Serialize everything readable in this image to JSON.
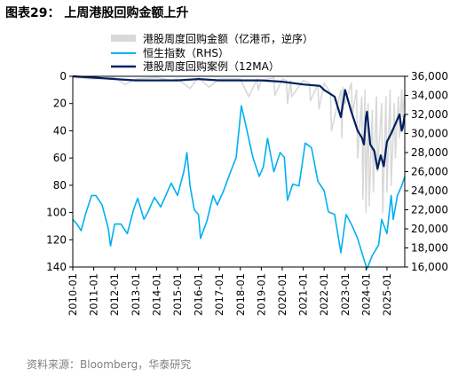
{
  "figure_title": "图表29：  上周港股回购金额上升",
  "source_note": "资料来源：Bloomberg，华泰研究",
  "chart_data": {
    "type": "line",
    "title": "",
    "xlabel": "",
    "ylabel": "",
    "x_ticks": [
      "2010-01",
      "2011-01",
      "2012-01",
      "2013-01",
      "2014-01",
      "2015-01",
      "2016-01",
      "2017-01",
      "2018-01",
      "2019-01",
      "2020-01",
      "2021-01",
      "2022-01",
      "2023-01",
      "2024-01",
      "2025-01"
    ],
    "xlim": [
      2010.0,
      2025.85
    ],
    "y_left": {
      "lim": [
        0,
        140
      ],
      "inverted": true,
      "ticks": [
        0,
        20,
        40,
        60,
        80,
        100,
        120,
        140
      ]
    },
    "y_right": {
      "lim": [
        16000,
        36000
      ],
      "ticks": [
        16000,
        18000,
        20000,
        22000,
        24000,
        26000,
        28000,
        30000,
        32000,
        34000,
        36000
      ]
    },
    "legend_position": "top",
    "grid": false,
    "series": [
      {
        "name": "港股周度回购金额（亿港币，逆序）",
        "axis": "left",
        "color": "#d9d9d9",
        "x": [
          2010.0,
          2011.0,
          2012.0,
          2012.5,
          2013.0,
          2014.0,
          2014.7,
          2015.0,
          2015.6,
          2016.0,
          2016.5,
          2017.0,
          2018.0,
          2018.4,
          2018.8,
          2018.85,
          2019.0,
          2019.6,
          2019.65,
          2020.0,
          2020.2,
          2020.25,
          2020.4,
          2020.45,
          2021.0,
          2021.3,
          2021.35,
          2021.7,
          2021.75,
          2022.0,
          2022.3,
          2022.35,
          2022.8,
          2022.85,
          2022.9,
          2023.0,
          2023.3,
          2023.35,
          2023.55,
          2023.6,
          2023.8,
          2023.85,
          2023.95,
          2024.0,
          2024.1,
          2024.15,
          2024.3,
          2024.35,
          2024.5,
          2024.55,
          2024.75,
          2024.8,
          2024.95,
          2025.0,
          2025.15,
          2025.2,
          2025.35,
          2025.4,
          2025.55,
          2025.6,
          2025.7,
          2025.75,
          2025.85
        ],
        "y": [
          1,
          2,
          1,
          6,
          2,
          1,
          3,
          2,
          9,
          1,
          8,
          2,
          2,
          15,
          2,
          10,
          3,
          1,
          14,
          2,
          3,
          20,
          3,
          15,
          3,
          5,
          18,
          6,
          24,
          5,
          12,
          40,
          10,
          45,
          8,
          20,
          5,
          28,
          10,
          60,
          15,
          90,
          10,
          100,
          20,
          95,
          25,
          85,
          15,
          70,
          20,
          100,
          15,
          85,
          10,
          80,
          20,
          60,
          15,
          45,
          10,
          30,
          10
        ]
      },
      {
        "name": "恒生指数（RHS）",
        "axis": "right",
        "color": "#00b0f0",
        "x": [
          2010.0,
          2010.2,
          2010.4,
          2010.6,
          2010.9,
          2011.1,
          2011.4,
          2011.7,
          2011.8,
          2012.0,
          2012.3,
          2012.6,
          2012.9,
          2013.1,
          2013.4,
          2013.6,
          2013.9,
          2014.2,
          2014.5,
          2014.7,
          2015.0,
          2015.3,
          2015.45,
          2015.6,
          2015.8,
          2016.0,
          2016.1,
          2016.4,
          2016.7,
          2016.9,
          2017.2,
          2017.5,
          2017.8,
          2018.05,
          2018.3,
          2018.6,
          2018.9,
          2019.1,
          2019.3,
          2019.6,
          2019.9,
          2020.1,
          2020.25,
          2020.5,
          2020.8,
          2021.1,
          2021.4,
          2021.7,
          2022.0,
          2022.2,
          2022.5,
          2022.8,
          2023.05,
          2023.3,
          2023.6,
          2023.9,
          2024.05,
          2024.3,
          2024.6,
          2024.75,
          2025.0,
          2025.2,
          2025.3,
          2025.5,
          2025.7,
          2025.85
        ],
        "y": [
          21000,
          20500,
          19800,
          21500,
          23500,
          23500,
          22500,
          20000,
          18200,
          20500,
          20500,
          19500,
          22000,
          23200,
          21000,
          21800,
          23300,
          22300,
          23800,
          24800,
          23500,
          26000,
          28000,
          24500,
          22000,
          21500,
          19000,
          20800,
          23500,
          22500,
          24000,
          25800,
          27500,
          32900,
          30500,
          27500,
          25500,
          26500,
          29500,
          26000,
          28000,
          27500,
          23000,
          24700,
          24500,
          29000,
          28500,
          25000,
          24000,
          21800,
          21500,
          17500,
          21500,
          20500,
          19000,
          16800,
          15800,
          17200,
          18300,
          21000,
          19500,
          23500,
          21000,
          23500,
          24500,
          25500
        ]
      },
      {
        "name": "港股周度回购案例（12MA）",
        "axis": "left",
        "color": "#002060",
        "x": [
          2010.0,
          2011.0,
          2012.0,
          2013.0,
          2014.0,
          2015.0,
          2016.0,
          2017.0,
          2018.0,
          2019.0,
          2020.0,
          2021.0,
          2021.8,
          2022.0,
          2022.5,
          2022.8,
          2023.0,
          2023.3,
          2023.6,
          2023.8,
          2023.9,
          2024.0,
          2024.05,
          2024.2,
          2024.4,
          2024.55,
          2024.7,
          2024.85,
          2025.0,
          2025.1,
          2025.2,
          2025.4,
          2025.6,
          2025.7,
          2025.75,
          2025.85
        ],
        "y": [
          0,
          1,
          2,
          3,
          3,
          3,
          2,
          3,
          3,
          3,
          4,
          6,
          7,
          10,
          15,
          30,
          10,
          26,
          40,
          45,
          50,
          30,
          26,
          50,
          55,
          68,
          58,
          66,
          48,
          45,
          42,
          35,
          28,
          40,
          38,
          28
        ]
      }
    ]
  }
}
